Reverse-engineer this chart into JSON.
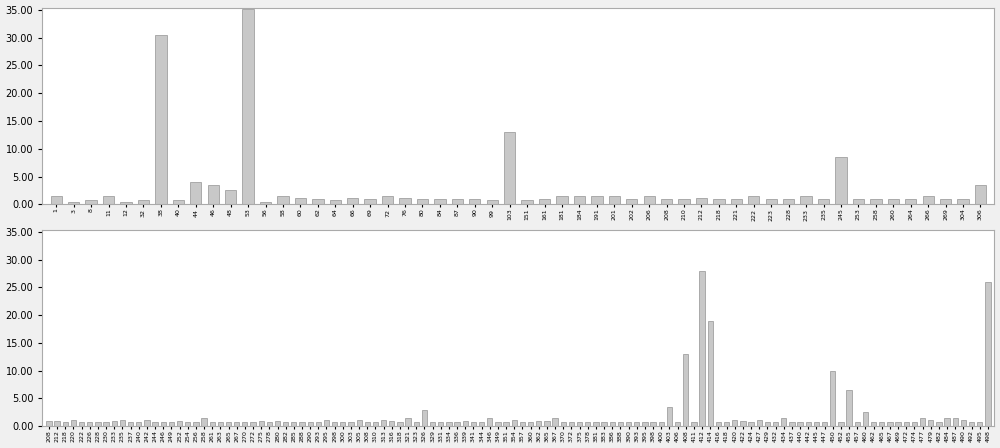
{
  "chart1": {
    "labels": [
      "1",
      "3",
      "8",
      "11",
      "12",
      "32",
      "38",
      "40",
      "44",
      "46",
      "48",
      "53",
      "56",
      "58",
      "60",
      "62",
      "64",
      "66",
      "69",
      "72",
      "76",
      "80",
      "84",
      "87",
      "90",
      "99",
      "103",
      "151",
      "161",
      "181",
      "184",
      "191",
      "201",
      "202",
      "206",
      "208",
      "210",
      "212",
      "218",
      "221",
      "222",
      "223",
      "228",
      "233",
      "235",
      "245",
      "253",
      "258",
      "260",
      "264",
      "266",
      "269",
      "304",
      "306"
    ],
    "values": [
      1.5,
      0.5,
      0.8,
      1.5,
      0.5,
      0.7,
      30.5,
      0.7,
      4.0,
      3.5,
      2.5,
      35.2,
      0.4,
      1.5,
      1.2,
      1.0,
      0.8,
      1.2,
      1.0,
      1.5,
      1.2,
      1.0,
      1.0,
      1.0,
      1.0,
      0.8,
      13.0,
      0.8,
      1.0,
      1.5,
      1.5,
      1.5,
      1.5,
      1.0,
      1.5,
      1.0,
      1.0,
      1.2,
      1.0,
      1.0,
      1.5,
      1.0,
      1.0,
      1.5,
      1.0,
      8.5,
      1.0,
      1.0,
      1.0,
      1.0,
      1.5,
      1.0,
      1.0,
      3.5
    ]
  },
  "chart2": {
    "labels": [
      "208",
      "212",
      "218",
      "220",
      "222",
      "226",
      "228",
      "230",
      "233",
      "235",
      "237",
      "240",
      "242",
      "244",
      "246",
      "249",
      "252",
      "254",
      "256",
      "258",
      "261",
      "263",
      "265",
      "267",
      "270",
      "272",
      "275",
      "278",
      "280",
      "282",
      "285",
      "288",
      "290",
      "293",
      "295",
      "298",
      "300",
      "303",
      "305",
      "308",
      "310",
      "313",
      "316",
      "318",
      "321",
      "323",
      "326",
      "329",
      "331",
      "334",
      "336",
      "339",
      "341",
      "344",
      "346",
      "349",
      "351",
      "354",
      "357",
      "360",
      "362",
      "365",
      "367",
      "370",
      "372",
      "375",
      "378",
      "381",
      "383",
      "386",
      "388",
      "390",
      "393",
      "395",
      "398",
      "400",
      "403",
      "406",
      "408",
      "411",
      "412",
      "414",
      "416",
      "418",
      "420",
      "422",
      "424",
      "427",
      "429",
      "432",
      "434",
      "437",
      "440",
      "442",
      "445",
      "447",
      "450",
      "452",
      "455",
      "457",
      "460",
      "462",
      "465",
      "467",
      "469",
      "472",
      "474",
      "477",
      "479",
      "482",
      "484",
      "487",
      "490",
      "492",
      "495",
      "498"
    ],
    "values": [
      1.0,
      1.0,
      0.8,
      1.2,
      0.8,
      0.8,
      0.8,
      0.8,
      1.0,
      1.2,
      0.8,
      0.8,
      1.2,
      0.8,
      0.8,
      0.8,
      1.0,
      0.8,
      0.8,
      1.5,
      0.8,
      0.8,
      0.8,
      0.8,
      0.8,
      0.8,
      1.0,
      0.8,
      1.0,
      0.8,
      0.8,
      0.8,
      0.8,
      0.8,
      1.2,
      0.8,
      0.8,
      0.8,
      1.2,
      0.8,
      0.8,
      1.2,
      1.0,
      0.8,
      1.5,
      0.8,
      3.0,
      0.8,
      0.8,
      0.8,
      0.8,
      1.0,
      0.8,
      0.8,
      1.5,
      0.8,
      0.8,
      1.2,
      0.8,
      0.8,
      1.0,
      1.0,
      1.5,
      0.8,
      0.8,
      0.8,
      0.8,
      0.8,
      0.8,
      0.8,
      0.8,
      0.8,
      0.8,
      0.8,
      0.8,
      0.8,
      3.5,
      0.8,
      13.0,
      0.8,
      28.0,
      19.0,
      0.8,
      0.8,
      1.2,
      1.0,
      0.8,
      1.2,
      0.8,
      0.8,
      1.5,
      0.8,
      0.8,
      0.8,
      0.8,
      0.8,
      10.0,
      0.8,
      6.5,
      0.8,
      2.5,
      0.8,
      0.8,
      0.8,
      0.8,
      0.8,
      0.8,
      1.5,
      1.2,
      0.8,
      1.5,
      1.5,
      1.2,
      0.8,
      0.8,
      26.0
    ]
  },
  "ylim": [
    0,
    35
  ],
  "yticks": [
    0.0,
    5.0,
    10.0,
    15.0,
    20.0,
    25.0,
    30.0,
    35.0
  ],
  "bar_color": "#c8c8c8",
  "bar_edge_color": "#808080",
  "bg_color": "#ffffff",
  "fig_bg_color": "#f0f0f0",
  "border_color": "#aaaaaa"
}
